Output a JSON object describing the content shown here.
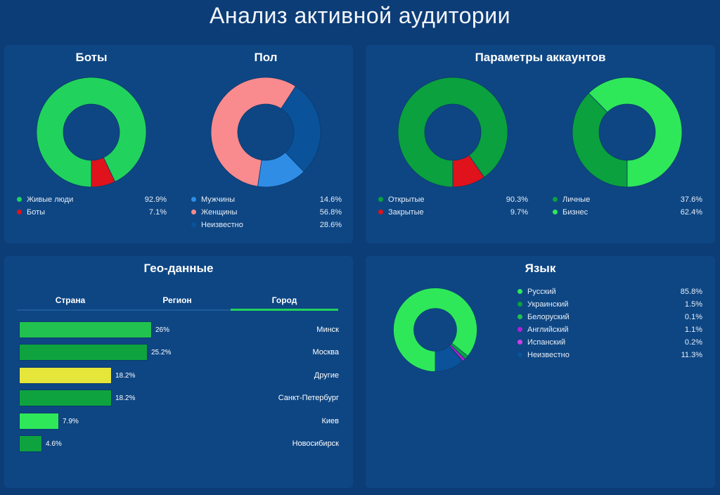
{
  "header": {
    "title": "Анализ активной аудитории"
  },
  "colors": {
    "background": "#0d3d77",
    "panel": "#0e4683",
    "green_light": "#21d35c",
    "green_dark": "#0aa13e",
    "green_bright": "#2ee85a",
    "red": "#e0121b",
    "pink": "#f98a8e",
    "blue_light": "#2f8de6",
    "blue_dark": "#0a5299",
    "yellow": "#e6e63a",
    "purple": "#b31fd9",
    "purple_light": "#d13ce8"
  },
  "panels": {
    "bots": {
      "title": "Боты"
    },
    "gender": {
      "title": "Пол"
    },
    "accounts": {
      "title": "Параметры аккаунтов"
    },
    "geo": {
      "title": "Гео-данные",
      "tabs": [
        "Страна",
        "Регион",
        "Город"
      ],
      "active_tab": "Город"
    },
    "language": {
      "title": "Язык"
    }
  },
  "chart_data": [
    {
      "id": "bots",
      "type": "pie",
      "variant": "donut",
      "title": "Боты",
      "series": [
        {
          "name": "Живые люди",
          "value": 92.9,
          "label": "92.9%",
          "color": "#21d35c"
        },
        {
          "name": "Боты",
          "value": 7.1,
          "label": "7.1%",
          "color": "#e0121b"
        }
      ]
    },
    {
      "id": "gender",
      "type": "pie",
      "variant": "donut",
      "title": "Пол",
      "series": [
        {
          "name": "Мужчины",
          "value": 14.6,
          "label": "14.6%",
          "color": "#2f8de6"
        },
        {
          "name": "Женщины",
          "value": 56.8,
          "label": "56.8%",
          "color": "#f98a8e"
        },
        {
          "name": "Неизвестно",
          "value": 28.6,
          "label": "28.6%",
          "color": "#0a5299"
        }
      ]
    },
    {
      "id": "account_type",
      "type": "pie",
      "variant": "donut",
      "title": "Параметры аккаунтов",
      "series": [
        {
          "name": "Открытые",
          "value": 90.3,
          "label": "90.3%",
          "color": "#0aa13e"
        },
        {
          "name": "Закрытые",
          "value": 9.7,
          "label": "9.7%",
          "color": "#e0121b"
        }
      ]
    },
    {
      "id": "account_kind",
      "type": "pie",
      "variant": "donut",
      "series": [
        {
          "name": "Личные",
          "value": 37.6,
          "label": "37.6%",
          "color": "#0aa13e"
        },
        {
          "name": "Бизнес",
          "value": 62.4,
          "label": "62.4%",
          "color": "#2ee85a"
        }
      ]
    },
    {
      "id": "geo",
      "type": "bar",
      "orientation": "horizontal",
      "title": "Гео-данные",
      "categories": [
        "Минск",
        "Москва",
        "Другие",
        "Санкт-Петербург",
        "Киев",
        "Новосибирск"
      ],
      "values": [
        26,
        25.2,
        18.2,
        18.2,
        7.9,
        4.6
      ],
      "labels": [
        "26%",
        "25.2%",
        "18.2%",
        "18.2%",
        "7.9%",
        "4.6%"
      ],
      "colors": [
        "#21c24f",
        "#0fa33f",
        "#e6e63a",
        "#0fa33f",
        "#2ee85a",
        "#0fa33f"
      ],
      "xlim": [
        0,
        26
      ]
    },
    {
      "id": "language",
      "type": "pie",
      "variant": "donut",
      "title": "Язык",
      "series": [
        {
          "name": "Русский",
          "value": 85.8,
          "label": "85.8%",
          "color": "#2ee85a"
        },
        {
          "name": "Украинский",
          "value": 1.5,
          "label": "1.5%",
          "color": "#0aa13e"
        },
        {
          "name": "Белоруский",
          "value": 0.1,
          "label": "0.1%",
          "color": "#21c24f"
        },
        {
          "name": "Английский",
          "value": 1.1,
          "label": "1.1%",
          "color": "#b31fd9"
        },
        {
          "name": "Испанский",
          "value": 0.2,
          "label": "0.2%",
          "color": "#d13ce8"
        },
        {
          "name": "Неизвестно",
          "value": 11.3,
          "label": "11.3%",
          "color": "#0a5299"
        }
      ]
    }
  ]
}
